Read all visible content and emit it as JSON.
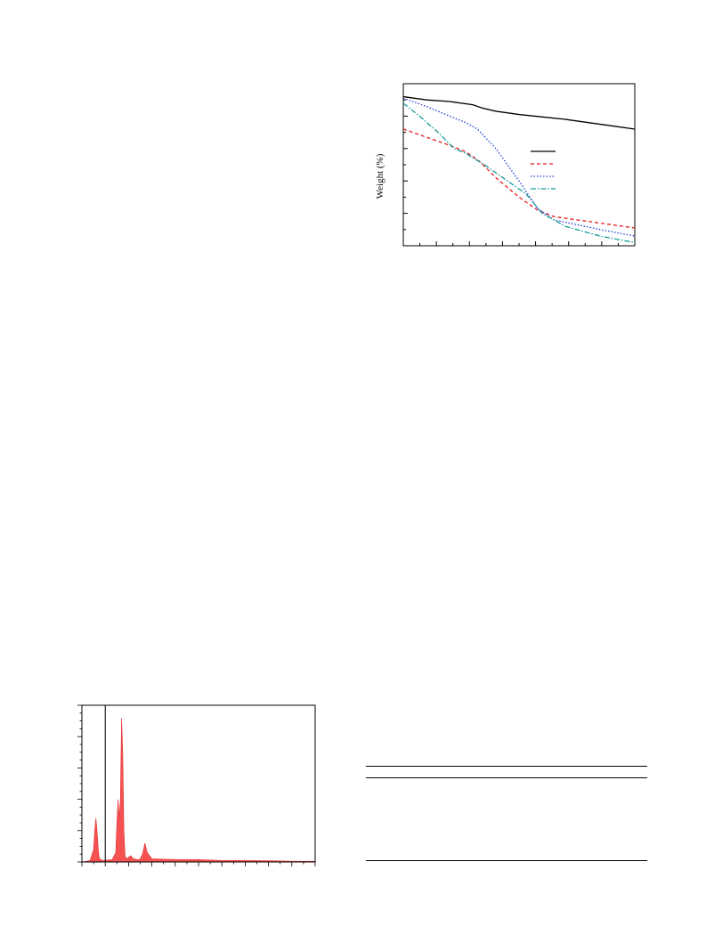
{
  "chart_data": [
    {
      "type": "line",
      "title": "",
      "xlabel": "",
      "ylabel": "Weight (%)",
      "xlim": [
        0,
        100
      ],
      "ylim": [
        0,
        100
      ],
      "grid": false,
      "legend_placement": "center-right",
      "series": [
        {
          "color": "#000000",
          "dash": "solid",
          "x": [
            0,
            10,
            20,
            30,
            34,
            40,
            50,
            60,
            70,
            80,
            90,
            100
          ],
          "y": [
            92,
            90,
            89,
            87,
            85,
            83,
            81,
            79.5,
            78,
            76,
            74,
            72
          ]
        },
        {
          "color": "#e41a1c",
          "dash": "dashed",
          "x": [
            0,
            10,
            20,
            27,
            33,
            40,
            50,
            58,
            65,
            75,
            85,
            100
          ],
          "y": [
            72,
            67,
            62,
            58,
            52,
            42,
            30,
            22,
            18,
            16,
            14,
            11
          ]
        },
        {
          "color": "#1f3fd6",
          "dash": "dotted",
          "x": [
            0,
            10,
            20,
            27,
            32,
            40,
            50,
            58,
            65,
            75,
            85,
            100
          ],
          "y": [
            91,
            86,
            80,
            76,
            72,
            60,
            40,
            23,
            16,
            13,
            10,
            6
          ]
        },
        {
          "color": "#1a9a9a",
          "dash": "dashdot",
          "x": [
            0,
            7,
            15,
            22,
            27,
            35,
            45,
            53,
            60,
            70,
            85,
            100
          ],
          "y": [
            88,
            80,
            70,
            60,
            57,
            50,
            40,
            32,
            20,
            12,
            6,
            2
          ]
        }
      ]
    },
    {
      "type": "area",
      "title": "",
      "xlabel": "",
      "ylabel": "",
      "xlim": [
        0,
        100
      ],
      "ylim": [
        0,
        100
      ],
      "grid": false,
      "reference_line_x": 10,
      "fill_color": "#f55252",
      "x": [
        0,
        2,
        3.5,
        5,
        5.5,
        6,
        6.5,
        7,
        7.5,
        9,
        13,
        14.5,
        15,
        15.5,
        16,
        16.5,
        17,
        17.5,
        18,
        18.5,
        19,
        20,
        21,
        22,
        24,
        25,
        26,
        27,
        28,
        30,
        40,
        50,
        60,
        70,
        80,
        90,
        100
      ],
      "y": [
        0,
        0.5,
        1,
        8,
        20,
        28,
        20,
        8,
        2,
        1,
        1.5,
        6,
        25,
        40,
        28,
        40,
        92,
        70,
        20,
        4,
        2,
        3,
        4,
        2,
        1.5,
        2,
        5,
        12,
        6,
        2,
        1.5,
        1.5,
        1,
        1,
        0.8,
        0.5,
        0.5
      ]
    }
  ]
}
